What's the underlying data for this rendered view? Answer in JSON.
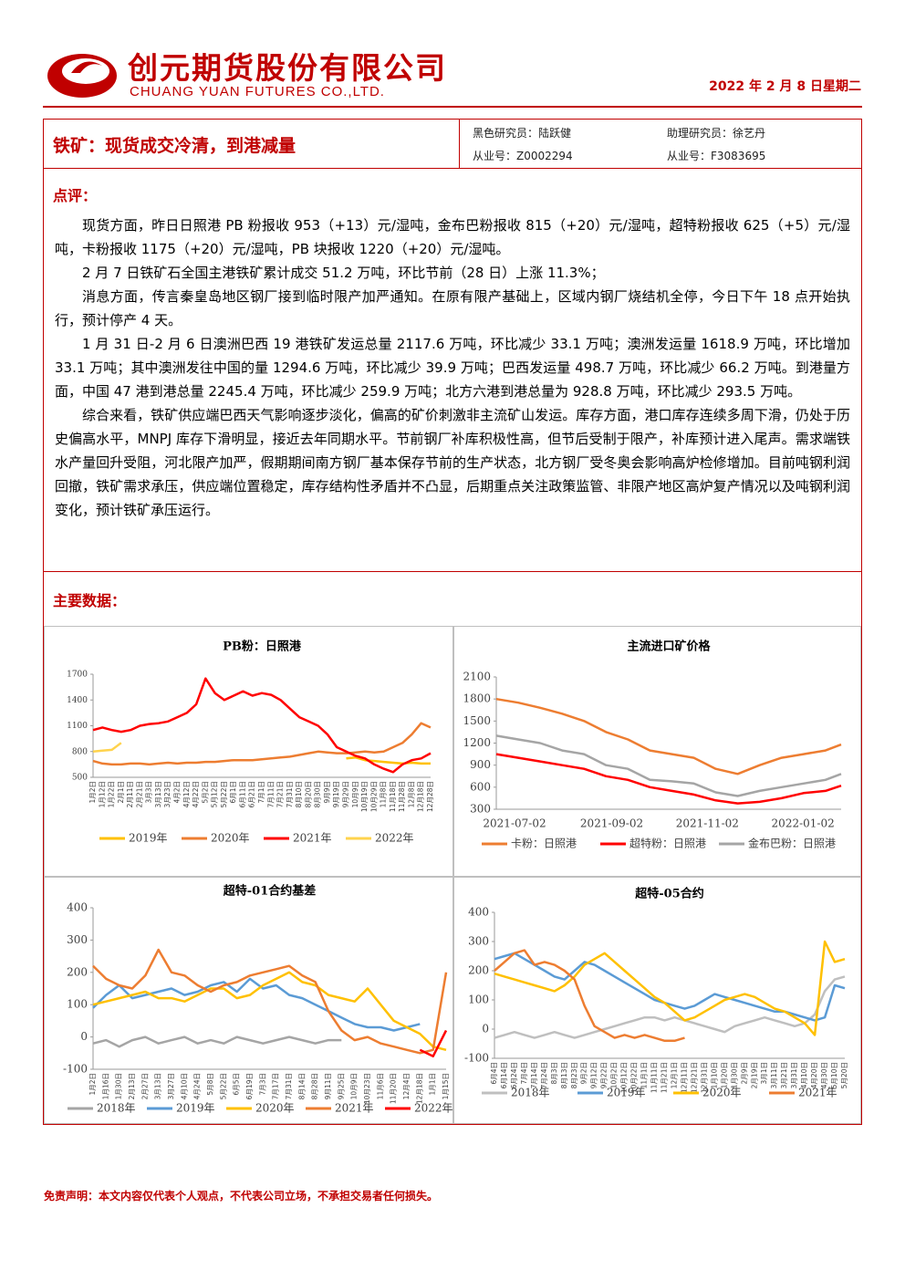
{
  "header": {
    "logo_cn": "创元期货股份有限公司",
    "logo_en": "CHUANG YUAN FUTURES CO.,LTD.",
    "date": "2022 年 2 月 8 日星期二"
  },
  "report": {
    "title": "铁矿：现货成交冷清，到港减量",
    "researcher": "黑色研究员：陆跃健",
    "researcher_id": "从业号：Z0002294",
    "assistant": "助理研究员：徐艺丹",
    "assistant_id": "从业号：F3083695"
  },
  "comment": {
    "heading": "点评：",
    "paragraphs": [
      "现货方面，昨日日照港 PB 粉报收 953（+13）元/湿吨，金布巴粉报收 815（+20）元/湿吨，超特粉报收 625（+5）元/湿吨，卡粉报收 1175（+20）元/湿吨，PB 块报收 1220（+20）元/湿吨。",
      "2 月 7 日铁矿石全国主港铁矿累计成交 51.2 万吨，环比节前（28 日）上涨 11.3%；",
      "消息方面，传言秦皇岛地区钢厂接到临时限产加严通知。在原有限产基础上，区域内钢厂烧结机全停，今日下午 18 点开始执行，预计停产 4 天。",
      "1 月 31 日-2 月 6 日澳洲巴西 19 港铁矿发运总量 2117.6 万吨，环比减少 33.1 万吨；澳洲发运量 1618.9 万吨，环比增加 33.1 万吨；其中澳洲发往中国的量 1294.6 万吨，环比减少 39.9 万吨；巴西发运量 498.7 万吨，环比减少 66.2 万吨。到港量方面，中国 47 港到港总量 2245.4 万吨，环比减少 259.9 万吨；北方六港到港总量为 928.8 万吨，环比减少 293.5 万吨。",
      "综合来看，铁矿供应端巴西天气影响逐步淡化，偏高的矿价刺激非主流矿山发运。库存方面，港口库存连续多周下滑，仍处于历史偏高水平，MNPJ 库存下滑明显，接近去年同期水平。节前钢厂补库积极性高，但节后受制于限产，补库预计进入尾声。需求端铁水产量回升受阻，河北限产加严，假期期间南方钢厂基本保存节前的生产状态，北方钢厂受冬奥会影响高炉检修增加。目前吨钢利润回撤，铁矿需求承压，供应端位置稳定，库存结构性矛盾并不凸显，后期重点关注政策监管、非限产地区高炉复产情况以及吨钢利润变化，预计铁矿承压运行。"
    ]
  },
  "data_heading": "主要数据：",
  "chart_data": [
    {
      "type": "line",
      "title": "PB粉：日照港",
      "categories": [
        "1月2日",
        "1月12日",
        "1月22日",
        "2月1日",
        "2月11日",
        "2月21日",
        "3月3日",
        "3月13日",
        "3月23日",
        "4月2日",
        "4月12日",
        "4月22日",
        "5月2日",
        "5月12日",
        "5月22日",
        "6月1日",
        "6月11日",
        "6月21日",
        "7月1日",
        "7月11日",
        "7月21日",
        "7月31日",
        "8月10日",
        "8月20日",
        "8月30日",
        "9月9日",
        "9月19日",
        "9月29日",
        "10月9日",
        "10月19日",
        "10月29日",
        "11月8日",
        "11月18日",
        "11月28日",
        "12月8日",
        "12月18日",
        "12月28日"
      ],
      "ylim": [
        500,
        1700
      ],
      "yticks": [
        500,
        800,
        1100,
        1400,
        1700
      ],
      "series": [
        {
          "name": "2019年",
          "color": "#ffc000",
          "values": [
            null,
            null,
            null,
            null,
            null,
            null,
            null,
            null,
            null,
            null,
            null,
            null,
            null,
            null,
            null,
            null,
            null,
            null,
            null,
            null,
            null,
            null,
            null,
            null,
            null,
            null,
            null,
            720,
            730,
            700,
            690,
            680,
            670,
            660,
            670,
            660,
            660
          ]
        },
        {
          "name": "2020年",
          "color": "#ed7d31",
          "values": [
            690,
            660,
            650,
            650,
            660,
            660,
            650,
            660,
            670,
            660,
            670,
            670,
            680,
            680,
            690,
            700,
            700,
            700,
            710,
            720,
            730,
            740,
            760,
            780,
            800,
            790,
            780,
            780,
            790,
            800,
            790,
            800,
            850,
            900,
            1000,
            1130,
            1080
          ]
        },
        {
          "name": "2021年",
          "color": "#ff0000",
          "values": [
            1050,
            1080,
            1050,
            1030,
            1050,
            1100,
            1120,
            1130,
            1150,
            1200,
            1250,
            1350,
            1650,
            1480,
            1400,
            1450,
            1500,
            1450,
            1480,
            1460,
            1400,
            1300,
            1200,
            1150,
            1100,
            1000,
            850,
            800,
            750,
            720,
            650,
            600,
            560,
            650,
            700,
            720,
            780
          ]
        },
        {
          "name": "2022年",
          "color": "#ffd34d",
          "values": [
            800,
            810,
            820,
            900,
            null,
            null,
            null,
            null,
            null,
            null,
            null,
            null,
            null,
            null,
            null,
            null,
            null,
            null,
            null,
            null,
            null,
            null,
            null,
            null,
            null,
            null,
            null,
            null,
            null,
            null,
            null,
            null,
            null,
            null,
            null,
            null,
            null
          ]
        }
      ]
    },
    {
      "type": "line",
      "title": "主流进口矿价格",
      "x": [
        "2021-07-02",
        "2021-07-16",
        "2021-07-30",
        "2021-08-13",
        "2021-08-27",
        "2021-09-10",
        "2021-09-24",
        "2021-10-08",
        "2021-10-22",
        "2021-11-05",
        "2021-11-19",
        "2021-12-03",
        "2021-12-17",
        "2021-12-31",
        "2022-01-14",
        "2022-01-28",
        "2022-02-07"
      ],
      "xticks": [
        "2021-07-02",
        "2021-09-02",
        "2021-11-02",
        "2022-01-02"
      ],
      "ylim": [
        300,
        2100
      ],
      "yticks": [
        300,
        600,
        900,
        1200,
        1500,
        1800,
        2100
      ],
      "series": [
        {
          "name": "卡粉：日照港",
          "color": "#ed7d31",
          "values": [
            1800,
            1750,
            1680,
            1600,
            1500,
            1350,
            1250,
            1100,
            1050,
            1000,
            850,
            780,
            900,
            1000,
            1050,
            1100,
            1180
          ]
        },
        {
          "name": "超特粉：日照港",
          "color": "#ff0000",
          "values": [
            1050,
            1000,
            950,
            900,
            850,
            750,
            700,
            600,
            550,
            500,
            420,
            380,
            400,
            450,
            520,
            550,
            620
          ]
        },
        {
          "name": "金布巴粉：日照港",
          "color": "#a5a5a5",
          "values": [
            1300,
            1250,
            1200,
            1100,
            1050,
            900,
            850,
            700,
            680,
            650,
            530,
            480,
            550,
            600,
            650,
            700,
            780
          ]
        }
      ]
    },
    {
      "type": "line",
      "title": "超特-01合约基差",
      "categories": [
        "1月2日",
        "1月16日",
        "1月30日",
        "2月13日",
        "2月27日",
        "3月13日",
        "3月27日",
        "4月10日",
        "4月24日",
        "5月8日",
        "5月22日",
        "6月5日",
        "6月19日",
        "7月3日",
        "7月17日",
        "7月31日",
        "8月14日",
        "8月28日",
        "9月11日",
        "9月25日",
        "10月9日",
        "10月23日",
        "11月6日",
        "11月20日",
        "12月4日",
        "12月18日",
        "1月1日",
        "1月15日"
      ],
      "ylim": [
        -100,
        400
      ],
      "yticks": [
        -100,
        0,
        100,
        200,
        300,
        400
      ],
      "series": [
        {
          "name": "2018年",
          "color": "#a5a5a5",
          "values": [
            -20,
            -10,
            -30,
            -10,
            0,
            -20,
            -10,
            0,
            -20,
            -10,
            -20,
            0,
            -10,
            -20,
            -10,
            0,
            -10,
            -20,
            -10,
            -10,
            null,
            null,
            null,
            null,
            null,
            null,
            null,
            null
          ]
        },
        {
          "name": "2019年",
          "color": "#5b9bd5",
          "values": [
            90,
            130,
            160,
            120,
            130,
            140,
            150,
            130,
            140,
            160,
            170,
            140,
            180,
            150,
            160,
            130,
            120,
            100,
            80,
            60,
            40,
            30,
            30,
            20,
            30,
            40,
            null,
            null
          ]
        },
        {
          "name": "2020年",
          "color": "#ffc000",
          "values": [
            100,
            110,
            120,
            130,
            140,
            120,
            120,
            110,
            130,
            150,
            150,
            120,
            130,
            160,
            180,
            200,
            170,
            160,
            130,
            120,
            110,
            150,
            100,
            50,
            30,
            10,
            -30,
            -40
          ]
        },
        {
          "name": "2021年",
          "color": "#ed7d31",
          "values": [
            220,
            180,
            160,
            150,
            190,
            270,
            200,
            190,
            160,
            140,
            160,
            170,
            190,
            200,
            210,
            220,
            190,
            170,
            80,
            20,
            -10,
            0,
            -20,
            -30,
            -40,
            -50,
            -40,
            200
          ]
        },
        {
          "name": "2022年",
          "color": "#ff0000",
          "values": [
            null,
            null,
            null,
            null,
            null,
            null,
            null,
            null,
            null,
            null,
            null,
            null,
            null,
            null,
            null,
            null,
            null,
            null,
            null,
            null,
            null,
            null,
            null,
            null,
            null,
            -40,
            -60,
            20
          ]
        }
      ]
    },
    {
      "type": "line",
      "title": "超特-05合约",
      "categories": [
        "6月4日",
        "6月14日",
        "6月24日",
        "7月4日",
        "7月14日",
        "7月24日",
        "8月3日",
        "8月13日",
        "8月23日",
        "9月2日",
        "9月12日",
        "9月22日",
        "10月2日",
        "10月12日",
        "10月22日",
        "11月1日",
        "11月11日",
        "11月21日",
        "12月1日",
        "12月11日",
        "12月21日",
        "12月31日",
        "1月10日",
        "1月20日",
        "1月30日",
        "2月9日",
        "2月19日",
        "3月1日",
        "3月11日",
        "3月21日",
        "3月31日",
        "4月10日",
        "4月20日",
        "4月30日",
        "5月10日",
        "5月20日"
      ],
      "ylim": [
        -100,
        400
      ],
      "yticks": [
        -100,
        0,
        100,
        200,
        300,
        400
      ],
      "series": [
        {
          "name": "2018年",
          "color": "#bfbfbf",
          "values": [
            -30,
            -20,
            -10,
            -20,
            -30,
            -20,
            -10,
            -20,
            -30,
            -20,
            -10,
            0,
            10,
            20,
            30,
            40,
            40,
            30,
            40,
            30,
            20,
            10,
            0,
            -10,
            10,
            20,
            30,
            40,
            30,
            20,
            10,
            20,
            50,
            130,
            170,
            180
          ]
        },
        {
          "name": "2019年",
          "color": "#5b9bd5",
          "values": [
            240,
            250,
            260,
            240,
            220,
            200,
            180,
            170,
            200,
            230,
            220,
            200,
            180,
            160,
            140,
            120,
            100,
            90,
            80,
            70,
            80,
            100,
            120,
            110,
            100,
            90,
            80,
            70,
            60,
            60,
            50,
            40,
            30,
            40,
            150,
            140
          ]
        },
        {
          "name": "2020年",
          "color": "#ffc000",
          "values": [
            190,
            180,
            170,
            160,
            150,
            140,
            130,
            150,
            180,
            220,
            240,
            260,
            230,
            200,
            170,
            140,
            110,
            90,
            60,
            30,
            40,
            60,
            80,
            100,
            110,
            120,
            110,
            90,
            70,
            60,
            40,
            20,
            -20,
            300,
            230,
            240
          ]
        },
        {
          "name": "2021年",
          "color": "#ed7d31",
          "values": [
            200,
            230,
            260,
            270,
            220,
            230,
            220,
            200,
            170,
            80,
            10,
            -10,
            -30,
            -20,
            -30,
            -20,
            -30,
            -40,
            -40,
            -30,
            null,
            null,
            null,
            null,
            null,
            null,
            null,
            null,
            null,
            null,
            null,
            null,
            null,
            null,
            null,
            null
          ]
        }
      ]
    }
  ],
  "disclaimer": "免责声明：本文内容仅代表个人观点，不代表公司立场，不承担交易者任何损失。"
}
